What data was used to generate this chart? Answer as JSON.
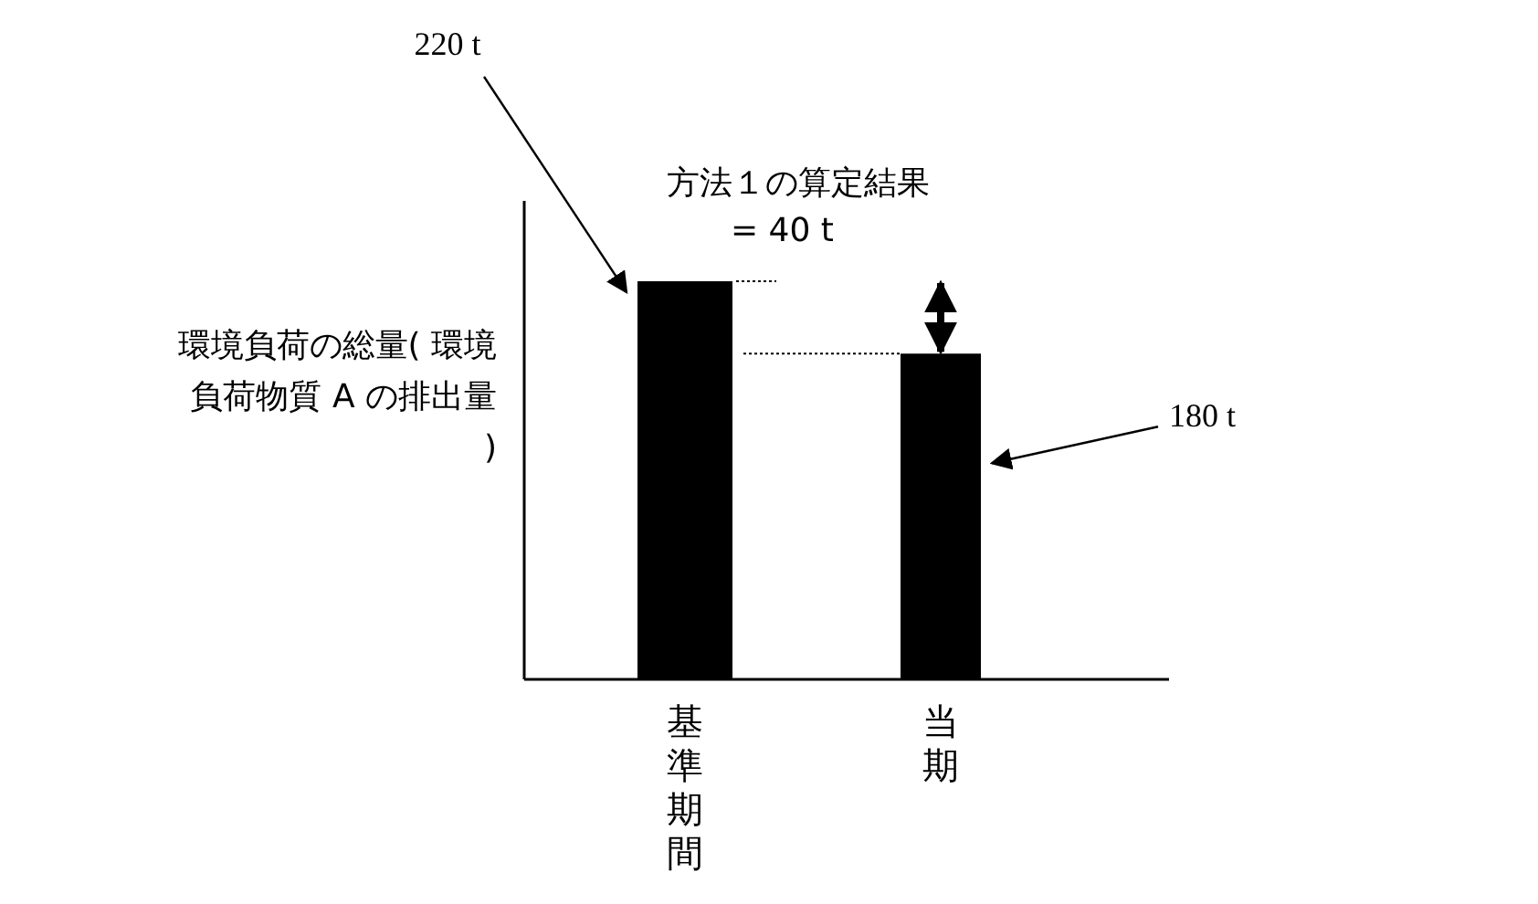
{
  "chart_data": {
    "type": "bar",
    "ylabel": "環境負荷の総量( 環境負荷物質 A の排出量 )",
    "categories": [
      "基準期間",
      "当期"
    ],
    "values": [
      220,
      180
    ],
    "value_labels": [
      "220 t",
      "180 t"
    ],
    "color": "#000000",
    "annotations": [
      "方法１の算定結果\n= 40 t"
    ]
  }
}
